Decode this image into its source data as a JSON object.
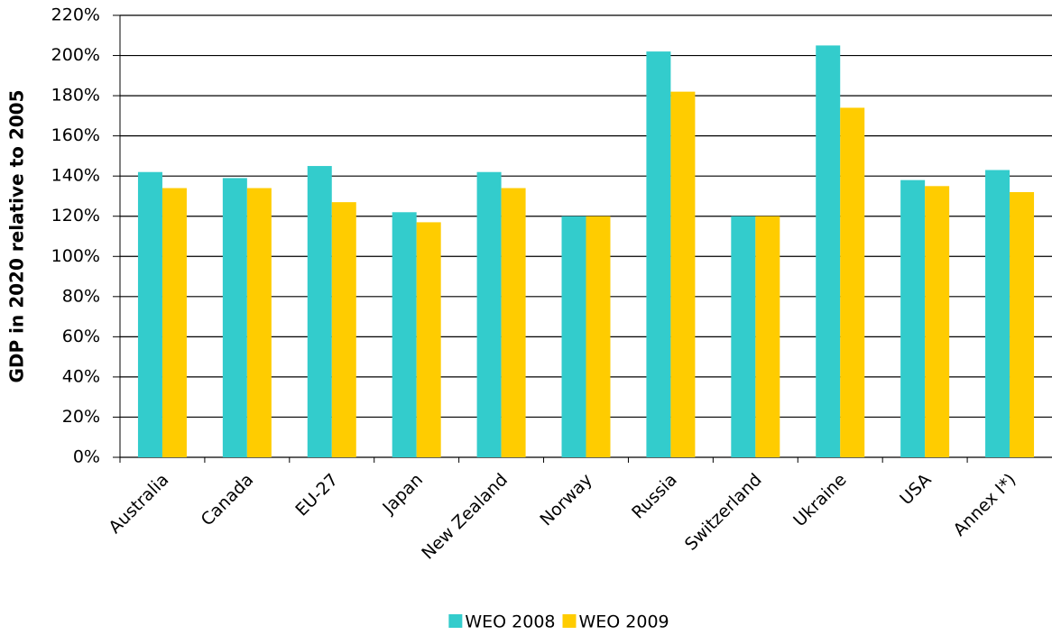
{
  "chart_data": {
    "type": "bar",
    "y_label": "GDP in  2020 relative to 2005",
    "categories": [
      "Australia",
      "Canada",
      "EU-27",
      "Japan",
      "New Zealand",
      "Norway",
      "Russia",
      "Switzerland",
      "Ukraine",
      "USA",
      "Annex I*)"
    ],
    "series": [
      {
        "name": "WEO 2008",
        "color": "#33cccc",
        "values": [
          142,
          139,
          145,
          122,
          142,
          120,
          202,
          120,
          205,
          138,
          143
        ]
      },
      {
        "name": "WEO 2009",
        "color": "#ffcc00",
        "values": [
          134,
          134,
          127,
          117,
          134,
          120,
          182,
          120,
          174,
          135,
          132
        ]
      }
    ],
    "ylim": [
      0,
      220
    ],
    "yticks": [
      {
        "value": 0,
        "label": "0%"
      },
      {
        "value": 20,
        "label": "20%"
      },
      {
        "value": 40,
        "label": "40%"
      },
      {
        "value": 60,
        "label": "60%"
      },
      {
        "value": 80,
        "label": "80%"
      },
      {
        "value": 100,
        "label": "100%"
      },
      {
        "value": 120,
        "label": "120%"
      },
      {
        "value": 140,
        "label": "140%"
      },
      {
        "value": 160,
        "label": "160%"
      },
      {
        "value": 180,
        "label": "180%"
      },
      {
        "value": 200,
        "label": "200%"
      },
      {
        "value": 220,
        "label": "220%"
      }
    ],
    "grid": true,
    "legend": "bottom"
  }
}
